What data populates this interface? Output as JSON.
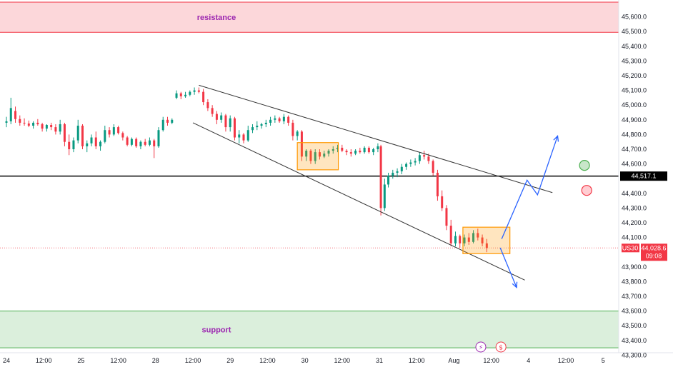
{
  "chart_data": {
    "type": "candlestick",
    "symbol": "US30",
    "current_price": "44,028.6",
    "countdown": "09:08",
    "level_price": "44,517.1",
    "level_value": 44517.1,
    "last_value": 44028.6,
    "ylim": [
      43300,
      45700
    ],
    "yticks": [
      {
        "label": "45,600.0",
        "value": 45600
      },
      {
        "label": "45,500.0",
        "value": 45500
      },
      {
        "label": "45,400.0",
        "value": 45400
      },
      {
        "label": "45,300.0",
        "value": 45300
      },
      {
        "label": "45,200.0",
        "value": 45200
      },
      {
        "label": "45,100.0",
        "value": 45100
      },
      {
        "label": "45,000.0",
        "value": 45000
      },
      {
        "label": "44,900.0",
        "value": 44900
      },
      {
        "label": "44,800.0",
        "value": 44800
      },
      {
        "label": "44,700.0",
        "value": 44700
      },
      {
        "label": "44,600.0",
        "value": 44600
      },
      {
        "label": "44,400.0",
        "value": 44400
      },
      {
        "label": "44,300.0",
        "value": 44300
      },
      {
        "label": "44,200.0",
        "value": 44200
      },
      {
        "label": "44,100.0",
        "value": 44100
      },
      {
        "label": "43,900.0",
        "value": 43900
      },
      {
        "label": "43,800.0",
        "value": 43800
      },
      {
        "label": "43,700.0",
        "value": 43700
      },
      {
        "label": "43,600.0",
        "value": 43600
      },
      {
        "label": "43,500.0",
        "value": 43500
      },
      {
        "label": "43,400.0",
        "value": 43400
      },
      {
        "label": "43,300.0",
        "value": 43300
      }
    ],
    "xticks": [
      "24",
      "12:00",
      "25",
      "12:00",
      "28",
      "12:00",
      "29",
      "12:00",
      "30",
      "12:00",
      "31",
      "12:00",
      "Aug",
      "12:00",
      "4",
      "12:00",
      "5"
    ],
    "xlim": [
      0,
      8.25
    ],
    "zones": [
      {
        "name": "resistance",
        "label": "resistance",
        "from": 45495,
        "to": 45700,
        "color": "#f23645"
      },
      {
        "name": "support",
        "label": "support",
        "from": 43350,
        "to": 43600,
        "color": "#4caf50"
      }
    ],
    "colors": {
      "up": "#089981",
      "down": "#f23645",
      "level": "#000000",
      "arrow": "#2962ff",
      "box": "#ff9800",
      "trend": "#333333",
      "axis": "#131722"
    },
    "candles": [
      [
        0.0,
        44880,
        44920,
        44850,
        44890
      ],
      [
        0.06,
        44890,
        45050,
        44870,
        44980
      ],
      [
        0.12,
        44960,
        44990,
        44880,
        44905
      ],
      [
        0.18,
        44905,
        44930,
        44860,
        44880
      ],
      [
        0.24,
        44880,
        44910,
        44860,
        44875
      ],
      [
        0.3,
        44875,
        44895,
        44850,
        44860
      ],
      [
        0.36,
        44860,
        44890,
        44840,
        44880
      ],
      [
        0.42,
        44880,
        44905,
        44860,
        44870
      ],
      [
        0.48,
        44870,
        44880,
        44820,
        44840
      ],
      [
        0.54,
        44840,
        44870,
        44820,
        44865
      ],
      [
        0.6,
        44865,
        44880,
        44830,
        44850
      ],
      [
        0.66,
        44850,
        44870,
        44800,
        44820
      ],
      [
        0.72,
        44820,
        44900,
        44800,
        44870
      ],
      [
        0.78,
        44870,
        44880,
        44720,
        44750
      ],
      [
        0.84,
        44750,
        44800,
        44660,
        44700
      ],
      [
        0.9,
        44700,
        44780,
        44680,
        44760
      ],
      [
        0.96,
        44760,
        44900,
        44740,
        44860
      ],
      [
        1.02,
        44860,
        44870,
        44700,
        44720
      ],
      [
        1.08,
        44720,
        44760,
        44680,
        44740
      ],
      [
        1.14,
        44740,
        44800,
        44720,
        44780
      ],
      [
        1.2,
        44780,
        44820,
        44700,
        44720
      ],
      [
        1.26,
        44720,
        44760,
        44690,
        44750
      ],
      [
        1.32,
        44750,
        44860,
        44740,
        44830
      ],
      [
        1.38,
        44830,
        44850,
        44780,
        44800
      ],
      [
        1.44,
        44800,
        44870,
        44790,
        44850
      ],
      [
        1.5,
        44850,
        44860,
        44800,
        44810
      ],
      [
        1.56,
        44810,
        44820,
        44760,
        44780
      ],
      [
        1.62,
        44780,
        44790,
        44720,
        44730
      ],
      [
        1.68,
        44730,
        44780,
        44720,
        44770
      ],
      [
        1.74,
        44770,
        44780,
        44710,
        44720
      ],
      [
        1.8,
        44720,
        44760,
        44700,
        44750
      ],
      [
        1.86,
        44750,
        44770,
        44720,
        44730
      ],
      [
        1.92,
        44730,
        44780,
        44720,
        44760
      ],
      [
        1.98,
        44760,
        44770,
        44640,
        44720
      ],
      [
        2.04,
        44720,
        44850,
        44710,
        44830
      ],
      [
        2.1,
        44830,
        44920,
        44820,
        44900
      ],
      [
        2.16,
        44900,
        44920,
        44860,
        44880
      ],
      [
        2.22,
        44880,
        44910,
        44870,
        44900
      ],
      [
        2.28,
        45050,
        45100,
        45040,
        45080
      ],
      [
        2.34,
        45080,
        45090,
        45040,
        45060
      ],
      [
        2.4,
        45060,
        45090,
        45050,
        45070
      ],
      [
        2.46,
        45070,
        45100,
        45060,
        45090
      ],
      [
        2.52,
        45090,
        45120,
        45070,
        45100
      ],
      [
        2.58,
        45100,
        45120,
        45080,
        45090
      ],
      [
        2.64,
        45090,
        45110,
        45000,
        45020
      ],
      [
        2.7,
        45020,
        45040,
        44960,
        44980
      ],
      [
        2.76,
        44980,
        45000,
        44920,
        44940
      ],
      [
        2.82,
        44940,
        44960,
        44870,
        44900
      ],
      [
        2.88,
        44900,
        44950,
        44880,
        44930
      ],
      [
        2.94,
        44930,
        44940,
        44820,
        44850
      ],
      [
        3.0,
        44850,
        44930,
        44820,
        44910
      ],
      [
        3.06,
        44910,
        44920,
        44760,
        44780
      ],
      [
        3.12,
        44780,
        44830,
        44740,
        44800
      ],
      [
        3.18,
        44800,
        44810,
        44740,
        44760
      ],
      [
        3.24,
        44760,
        44860,
        44750,
        44830
      ],
      [
        3.3,
        44830,
        44870,
        44810,
        44850
      ],
      [
        3.36,
        44850,
        44890,
        44830,
        44860
      ],
      [
        3.42,
        44860,
        44880,
        44840,
        44870
      ],
      [
        3.48,
        44870,
        44900,
        44850,
        44880
      ],
      [
        3.54,
        44880,
        44920,
        44860,
        44900
      ],
      [
        3.6,
        44900,
        44930,
        44880,
        44910
      ],
      [
        3.66,
        44910,
        44920,
        44880,
        44890
      ],
      [
        3.72,
        44890,
        44940,
        44870,
        44920
      ],
      [
        3.78,
        44920,
        44930,
        44860,
        44880
      ],
      [
        3.84,
        44880,
        44900,
        44760,
        44790
      ],
      [
        3.9,
        44790,
        44830,
        44760,
        44820
      ],
      [
        3.96,
        44820,
        44830,
        44620,
        44650
      ],
      [
        4.02,
        44650,
        44700,
        44620,
        44690
      ],
      [
        4.08,
        44690,
        44700,
        44600,
        44620
      ],
      [
        4.14,
        44620,
        44700,
        44600,
        44680
      ],
      [
        4.2,
        44680,
        44700,
        44630,
        44650
      ],
      [
        4.26,
        44650,
        44690,
        44640,
        44670
      ],
      [
        4.32,
        44670,
        44700,
        44650,
        44690
      ],
      [
        4.38,
        44690,
        44720,
        44670,
        44700
      ],
      [
        4.44,
        44700,
        44730,
        44680,
        44710
      ],
      [
        4.5,
        44710,
        44730,
        44680,
        44690
      ],
      [
        4.56,
        44690,
        44700,
        44660,
        44680
      ],
      [
        4.62,
        44680,
        44700,
        44650,
        44670
      ],
      [
        4.68,
        44670,
        44700,
        44660,
        44690
      ],
      [
        4.74,
        44690,
        44710,
        44670,
        44680
      ],
      [
        4.8,
        44680,
        44720,
        44670,
        44710
      ],
      [
        4.86,
        44710,
        44720,
        44670,
        44680
      ],
      [
        4.92,
        44680,
        44710,
        44660,
        44700
      ],
      [
        4.98,
        44700,
        44740,
        44680,
        44720
      ],
      [
        5.02,
        44720,
        44730,
        44250,
        44300
      ],
      [
        5.07,
        44300,
        44500,
        44280,
        44460
      ],
      [
        5.12,
        44460,
        44540,
        44440,
        44520
      ],
      [
        5.18,
        44520,
        44560,
        44500,
        44540
      ],
      [
        5.24,
        44540,
        44570,
        44510,
        44550
      ],
      [
        5.3,
        44550,
        44600,
        44530,
        44580
      ],
      [
        5.36,
        44580,
        44610,
        44560,
        44600
      ],
      [
        5.42,
        44600,
        44630,
        44580,
        44610
      ],
      [
        5.48,
        44610,
        44640,
        44590,
        44620
      ],
      [
        5.54,
        44620,
        44680,
        44600,
        44660
      ],
      [
        5.6,
        44660,
        44690,
        44630,
        44650
      ],
      [
        5.66,
        44650,
        44670,
        44600,
        44620
      ],
      [
        5.72,
        44620,
        44630,
        44520,
        44540
      ],
      [
        5.78,
        44540,
        44560,
        44350,
        44380
      ],
      [
        5.84,
        44380,
        44420,
        44280,
        44300
      ],
      [
        5.9,
        44300,
        44320,
        44150,
        44180
      ],
      [
        5.96,
        44180,
        44220,
        44040,
        44060
      ],
      [
        6.02,
        44060,
        44140,
        44040,
        44110
      ],
      [
        6.08,
        44110,
        44120,
        44030,
        44060
      ],
      [
        6.14,
        44060,
        44120,
        44040,
        44100
      ],
      [
        6.2,
        44100,
        44130,
        44050,
        44070
      ],
      [
        6.26,
        44070,
        44150,
        44060,
        44130
      ],
      [
        6.32,
        44130,
        44160,
        44080,
        44100
      ],
      [
        6.38,
        44100,
        44120,
        44040,
        44060
      ],
      [
        6.44,
        44060,
        44090,
        44000,
        44028
      ]
    ],
    "trend_lines": [
      {
        "name": "upper",
        "from": [
          2.58,
          45135
        ],
        "to": [
          7.32,
          44405
        ]
      },
      {
        "name": "lower",
        "from": [
          2.5,
          44880
        ],
        "to": [
          6.95,
          43810
        ]
      }
    ],
    "boxes": [
      {
        "name": "box-1",
        "from_x": 3.9,
        "to_x": 4.45,
        "from_y": 44560,
        "to_y": 44745
      },
      {
        "name": "box-2",
        "from_x": 6.12,
        "to_x": 6.75,
        "from_y": 43990,
        "to_y": 44170
      }
    ],
    "arrows": [
      {
        "name": "path-up",
        "points": [
          [
            6.64,
            44090
          ],
          [
            6.98,
            44490
          ],
          [
            7.12,
            44390
          ],
          [
            7.39,
            44790
          ]
        ]
      },
      {
        "name": "path-down",
        "points": [
          [
            6.62,
            44030
          ],
          [
            6.84,
            43760
          ]
        ]
      }
    ],
    "circles": [
      {
        "name": "green-signal",
        "x": 7.75,
        "y": 44590,
        "color": "#4caf50",
        "fill": "#c8e6c9"
      },
      {
        "name": "red-signal",
        "x": 7.78,
        "y": 44420,
        "color": "#f23645",
        "fill": "#ffcdd2"
      }
    ],
    "events": [
      {
        "name": "lightning-event",
        "x": 6.36,
        "symbol": "⚡",
        "color": "#9c27b0"
      },
      {
        "name": "us-flag-event",
        "x": 6.63,
        "symbol": "$",
        "color": "#f23645"
      }
    ]
  }
}
